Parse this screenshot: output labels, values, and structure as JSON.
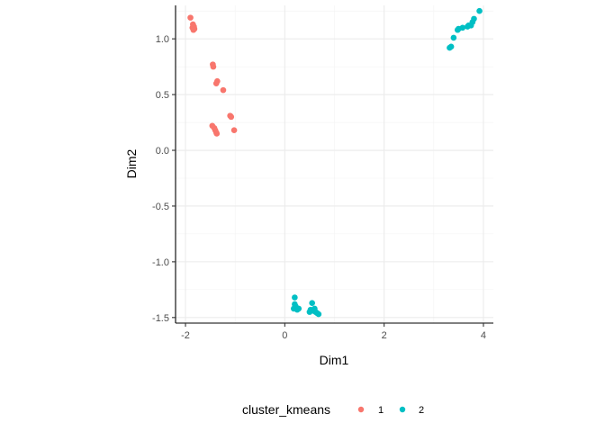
{
  "chart_data": {
    "type": "scatter",
    "title": "",
    "xlabel": "Dim1",
    "ylabel": "Dim2",
    "xlim": [
      -2.2,
      4.2
    ],
    "ylim": [
      -1.55,
      1.3
    ],
    "x_ticks": [
      -2,
      0,
      2,
      4
    ],
    "x_tick_labels": [
      "-2",
      "0",
      "2",
      "4"
    ],
    "y_ticks": [
      -1.5,
      -1.0,
      -0.5,
      0.0,
      0.5,
      1.0
    ],
    "y_tick_labels": [
      "-1.5",
      "-1.0",
      "-0.5",
      "0.0",
      "0.5",
      "1.0"
    ],
    "x_minor_ticks": [
      -1,
      1,
      3
    ],
    "y_minor_ticks": [
      -1.25,
      -0.75,
      -0.25,
      0.25,
      0.75,
      1.25
    ],
    "grid": true,
    "legend": {
      "title": "cluster_kmeans",
      "position": "bottom"
    },
    "series": [
      {
        "name": "1",
        "color": "#F8766D",
        "points": [
          {
            "x": -1.9,
            "y": 1.19
          },
          {
            "x": -1.85,
            "y": 1.13
          },
          {
            "x": -1.83,
            "y": 1.11
          },
          {
            "x": -1.86,
            "y": 1.1
          },
          {
            "x": -1.82,
            "y": 1.09
          },
          {
            "x": -1.84,
            "y": 1.08
          },
          {
            "x": -1.45,
            "y": 0.77
          },
          {
            "x": -1.44,
            "y": 0.75
          },
          {
            "x": -1.36,
            "y": 0.62
          },
          {
            "x": -1.38,
            "y": 0.6
          },
          {
            "x": -1.24,
            "y": 0.54
          },
          {
            "x": -1.1,
            "y": 0.31
          },
          {
            "x": -1.08,
            "y": 0.3
          },
          {
            "x": -1.46,
            "y": 0.22
          },
          {
            "x": -1.42,
            "y": 0.2
          },
          {
            "x": -1.4,
            "y": 0.18
          },
          {
            "x": -1.38,
            "y": 0.16
          },
          {
            "x": -1.37,
            "y": 0.15
          },
          {
            "x": -1.02,
            "y": 0.18
          }
        ]
      },
      {
        "name": "2",
        "color": "#00BFC4",
        "points": [
          {
            "x": 3.92,
            "y": 1.25
          },
          {
            "x": 3.81,
            "y": 1.18
          },
          {
            "x": 3.78,
            "y": 1.15
          },
          {
            "x": 3.75,
            "y": 1.12
          },
          {
            "x": 3.7,
            "y": 1.12
          },
          {
            "x": 3.68,
            "y": 1.11
          },
          {
            "x": 3.58,
            "y": 1.1
          },
          {
            "x": 3.48,
            "y": 1.08
          },
          {
            "x": 3.5,
            "y": 1.09
          },
          {
            "x": 3.4,
            "y": 1.01
          },
          {
            "x": 3.35,
            "y": 0.93
          },
          {
            "x": 3.32,
            "y": 0.92
          },
          {
            "x": 0.2,
            "y": -1.32
          },
          {
            "x": 0.18,
            "y": -1.42
          },
          {
            "x": 0.22,
            "y": -1.4
          },
          {
            "x": 0.25,
            "y": -1.43
          },
          {
            "x": 0.28,
            "y": -1.42
          },
          {
            "x": 0.2,
            "y": -1.38
          },
          {
            "x": 0.55,
            "y": -1.37
          },
          {
            "x": 0.52,
            "y": -1.43
          },
          {
            "x": 0.5,
            "y": -1.45
          },
          {
            "x": 0.58,
            "y": -1.44
          },
          {
            "x": 0.62,
            "y": -1.45
          },
          {
            "x": 0.65,
            "y": -1.46
          },
          {
            "x": 0.68,
            "y": -1.47
          },
          {
            "x": 0.6,
            "y": -1.42
          }
        ]
      }
    ]
  }
}
